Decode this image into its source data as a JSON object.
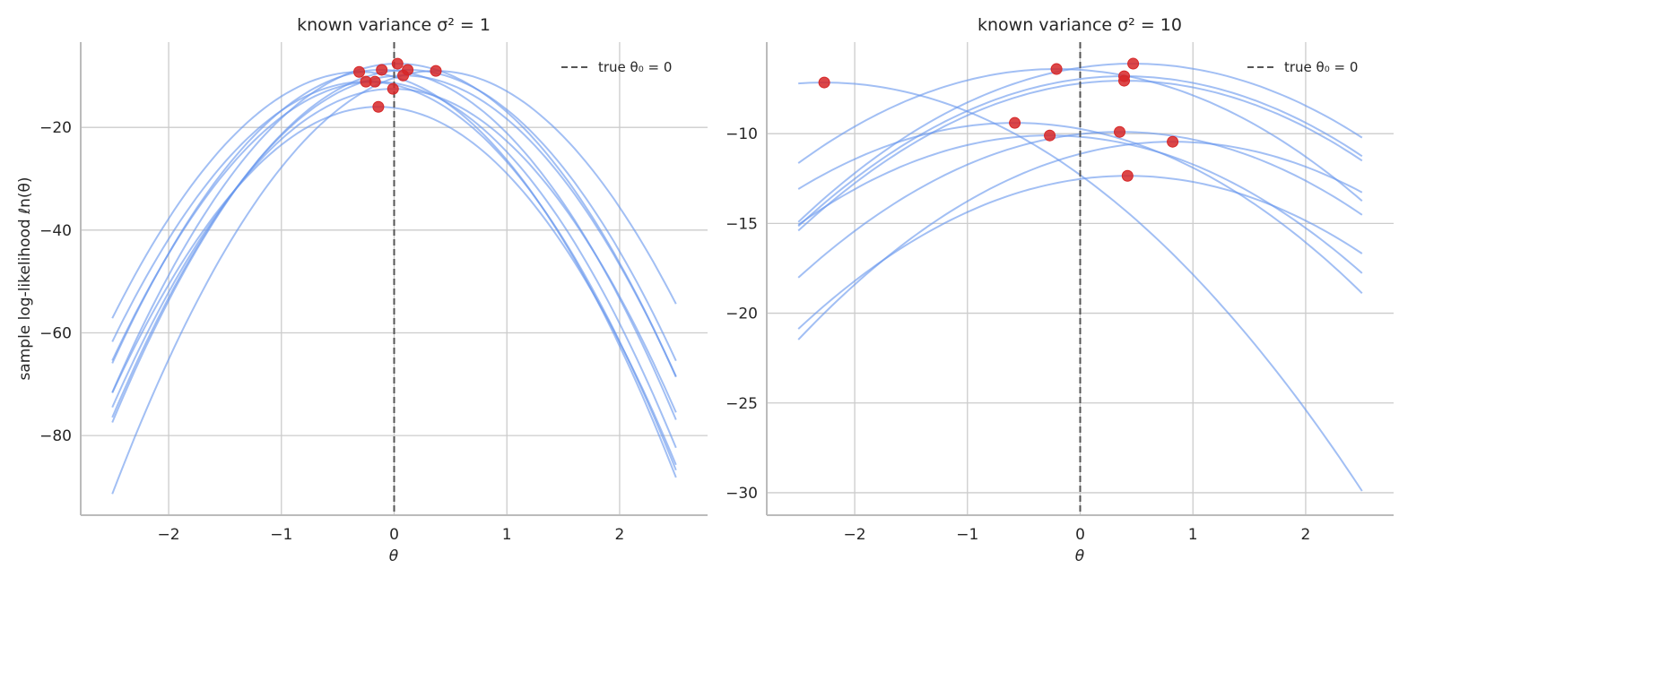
{
  "chart_data": [
    {
      "type": "line",
      "title": "known variance σ² = 1",
      "xlabel": "θ",
      "ylabel": "sample log-likelihood ℓn(θ)",
      "xlim": [
        -2.78,
        2.78
      ],
      "ylim": [
        -95.5,
        -3.4
      ],
      "xticks": [
        -2,
        -1,
        0,
        1,
        2
      ],
      "xtick_labels": [
        "−2",
        "−1",
        "0",
        "1",
        "2"
      ],
      "yticks": [
        -20,
        -40,
        -60,
        -80
      ],
      "ytick_labels": [
        "−20",
        "−40",
        "−60",
        "−80"
      ],
      "grid": true,
      "legend": {
        "placement": "top-right",
        "label": "true θ₀ = 0"
      },
      "true_theta": 0,
      "theta_range": [
        -2.5,
        2.5
      ],
      "curvature": 10,
      "mle_points": [
        {
          "theta": -0.31,
          "loglik": -9.2
        },
        {
          "theta": -0.25,
          "loglik": -11.1
        },
        {
          "theta": -0.17,
          "loglik": -11.1
        },
        {
          "theta": -0.11,
          "loglik": -8.8
        },
        {
          "theta": 0.03,
          "loglik": -7.6
        },
        {
          "theta": 0.08,
          "loglik": -9.9
        },
        {
          "theta": 0.12,
          "loglik": -8.8
        },
        {
          "theta": 0.37,
          "loglik": -9.0
        },
        {
          "theta": -0.01,
          "loglik": -12.5
        },
        {
          "theta": -0.14,
          "loglik": -16.0
        }
      ]
    },
    {
      "type": "line",
      "title": "known variance σ² = 10",
      "xlabel": "θ",
      "ylabel": "",
      "xlim": [
        -2.78,
        2.78
      ],
      "ylim": [
        -31.25,
        -4.9
      ],
      "xticks": [
        -2,
        -1,
        0,
        1,
        2
      ],
      "xtick_labels": [
        "−2",
        "−1",
        "0",
        "1",
        "2"
      ],
      "yticks": [
        -10,
        -15,
        -20,
        -25,
        -30
      ],
      "ytick_labels": [
        "−10",
        "−15",
        "−20",
        "−25",
        "−30"
      ],
      "grid": true,
      "legend": {
        "placement": "top-right",
        "label": "true θ₀ = 0"
      },
      "true_theta": 0,
      "theta_range": [
        -2.5,
        2.5
      ],
      "curvature": 1,
      "mle_points": [
        {
          "theta": -2.27,
          "loglik": -7.15
        },
        {
          "theta": -0.21,
          "loglik": -6.4
        },
        {
          "theta": 0.47,
          "loglik": -6.1
        },
        {
          "theta": 0.39,
          "loglik": -6.8
        },
        {
          "theta": 0.39,
          "loglik": -7.05
        },
        {
          "theta": -0.58,
          "loglik": -9.4
        },
        {
          "theta": -0.27,
          "loglik": -10.1
        },
        {
          "theta": 0.35,
          "loglik": -9.9
        },
        {
          "theta": 0.82,
          "loglik": -10.45
        },
        {
          "theta": 0.42,
          "loglik": -12.35
        }
      ]
    }
  ],
  "colors": {
    "curve": "#6495ed",
    "mle": "#d62728",
    "true_line": "#555555",
    "grid": "#cccccc"
  }
}
